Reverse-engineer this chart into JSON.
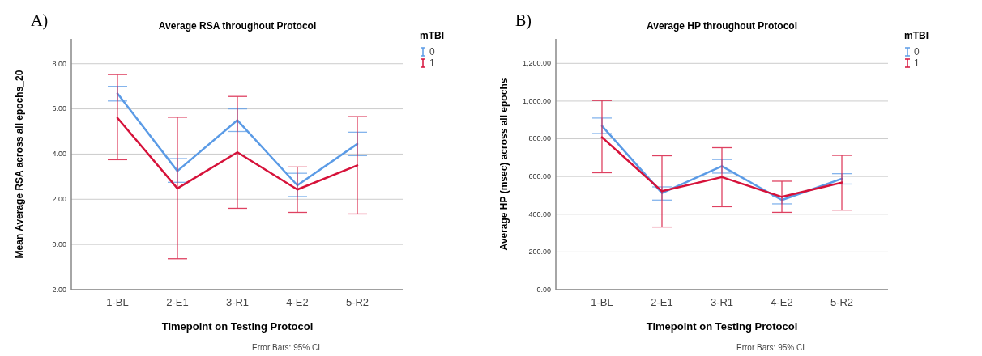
{
  "chart_data": [
    {
      "type": "line",
      "title": "Average RSA throughout Protocol",
      "xlabel": "Timepoint on Testing Protocol",
      "ylabel": "Mean Average RSA across all epochs_20",
      "legend_title": "mTBI",
      "annotations": [
        "A)",
        "Error Bars: 95% CI"
      ],
      "categories": [
        "1-BL",
        "2-E1",
        "3-R1",
        "4-E2",
        "5-R2"
      ],
      "series": [
        {
          "name": "0",
          "color": "#5b9be6",
          "values": [
            6.68,
            3.25,
            5.5,
            2.62,
            4.45
          ],
          "errors": [
            [
              6.35,
              7.0
            ],
            [
              2.75,
              3.8
            ],
            [
              5.0,
              6.0
            ],
            [
              2.12,
              3.15
            ],
            [
              3.93,
              4.97
            ]
          ]
        },
        {
          "name": "1",
          "color": "#d6123a",
          "values": [
            5.6,
            2.48,
            4.08,
            2.43,
            3.5
          ],
          "errors": [
            [
              3.75,
              7.52
            ],
            [
              -0.63,
              5.63
            ],
            [
              1.6,
              6.55
            ],
            [
              1.42,
              3.43
            ],
            [
              1.35,
              5.66
            ]
          ]
        }
      ],
      "ylim": [
        -2,
        9.1
      ],
      "yticks": [
        {
          "value": -2,
          "label": "-2.00"
        },
        {
          "value": 0,
          "label": "0.00"
        },
        {
          "value": 2,
          "label": "2.00"
        },
        {
          "value": 4,
          "label": "4.00"
        },
        {
          "value": 6,
          "label": "6.00"
        },
        {
          "value": 8,
          "label": "8.00"
        }
      ],
      "grid": "y",
      "legend": "top right",
      "marker": "none",
      "line_style": "solid"
    },
    {
      "type": "line",
      "title": "Average HP throughout Protocol",
      "xlabel": "Timepoint on Testing Protocol",
      "ylabel": "Average HP (msec) across all epochs",
      "legend_title": "mTBI",
      "annotations": [
        "B)",
        "Error Bars: 95% CI"
      ],
      "categories": [
        "1-BL",
        "2-E1",
        "3-R1",
        "4-E2",
        "5-R2"
      ],
      "series": [
        {
          "name": "0",
          "color": "#5b9be6",
          "values": [
            868,
            512,
            655,
            475,
            588
          ],
          "errors": [
            [
              828,
              910
            ],
            [
              475,
              545
            ],
            [
              618,
              690
            ],
            [
              455,
              495
            ],
            [
              560,
              615
            ]
          ]
        },
        {
          "name": "1",
          "color": "#d6123a",
          "values": [
            808,
            522,
            597,
            492,
            568
          ],
          "errors": [
            [
              620,
              1003
            ],
            [
              332,
              710
            ],
            [
              440,
              753
            ],
            [
              410,
              575
            ],
            [
              422,
              712
            ]
          ]
        }
      ],
      "ylim": [
        0,
        1330
      ],
      "yticks": [
        {
          "value": 0,
          "label": "0.00"
        },
        {
          "value": 200,
          "label": "200.00"
        },
        {
          "value": 400,
          "label": "400.00"
        },
        {
          "value": 600,
          "label": "600.00"
        },
        {
          "value": 800,
          "label": "800.00"
        },
        {
          "value": 1000,
          "label": "1,000.00"
        },
        {
          "value": 1200,
          "label": "1,200.00"
        }
      ],
      "grid": "y",
      "legend": "top right",
      "marker": "none",
      "line_style": "solid"
    }
  ]
}
